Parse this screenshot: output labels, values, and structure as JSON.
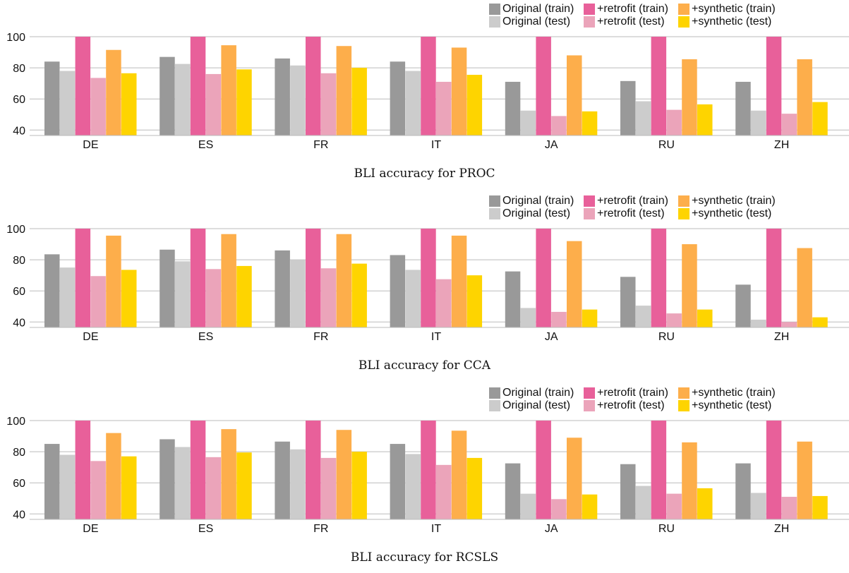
{
  "colors": {
    "original_train": "#999999",
    "original_test": "#cccccc",
    "retrofit_train": "#e8609a",
    "retrofit_test": "#eba4ba",
    "synthetic_train": "#fdae4b",
    "synthetic_test": "#fed400",
    "grid": "#bbbbbb"
  },
  "chart_data": [
    {
      "type": "bar",
      "caption": "BLI accuracy for PROC",
      "categories": [
        "DE",
        "ES",
        "FR",
        "IT",
        "JA",
        "RU",
        "ZH"
      ],
      "ylim": [
        36.5,
        100
      ],
      "yticks": [
        40,
        60,
        80,
        100
      ],
      "grid": true,
      "legend_placement": "top-right",
      "series": [
        {
          "name": "Original (train)",
          "color": "#999999",
          "values": [
            84,
            87,
            86,
            84,
            71,
            71.5,
            71
          ]
        },
        {
          "name": "Original (test)",
          "color": "#cccccc",
          "values": [
            78,
            82.5,
            81.5,
            78,
            52.5,
            58.5,
            52.5
          ]
        },
        {
          "name": "+retrofit (train)",
          "color": "#e8609a",
          "values": [
            100,
            100,
            100,
            100,
            100,
            100,
            100
          ]
        },
        {
          "name": "+retrofit (test)",
          "color": "#eba4ba",
          "values": [
            73.5,
            76,
            76.5,
            71,
            49,
            53,
            50.5
          ]
        },
        {
          "name": "+synthetic (train)",
          "color": "#fdae4b",
          "values": [
            91.5,
            94.5,
            94,
            93,
            88,
            85.5,
            85.5
          ]
        },
        {
          "name": "+synthetic (test)",
          "color": "#fed400",
          "values": [
            76.5,
            79,
            80,
            75.5,
            52,
            56.5,
            58
          ]
        }
      ]
    },
    {
      "type": "bar",
      "caption": "BLI accuracy for CCA",
      "categories": [
        "DE",
        "ES",
        "FR",
        "IT",
        "JA",
        "RU",
        "ZH"
      ],
      "ylim": [
        36.5,
        100
      ],
      "yticks": [
        40,
        60,
        80,
        100
      ],
      "grid": true,
      "legend_placement": "top-right",
      "series": [
        {
          "name": "Original (train)",
          "color": "#999999",
          "values": [
            83.5,
            86.5,
            86,
            83,
            72.5,
            69,
            64
          ]
        },
        {
          "name": "Original (test)",
          "color": "#cccccc",
          "values": [
            75,
            79,
            80,
            73.5,
            49,
            50.5,
            41.5
          ]
        },
        {
          "name": "+retrofit (train)",
          "color": "#e8609a",
          "values": [
            100,
            100,
            100,
            100,
            100,
            100,
            100
          ]
        },
        {
          "name": "+retrofit (test)",
          "color": "#eba4ba",
          "values": [
            69.5,
            74,
            74.5,
            67.5,
            46.5,
            45.5,
            40
          ]
        },
        {
          "name": "+synthetic (train)",
          "color": "#fdae4b",
          "values": [
            95.5,
            96.5,
            96.5,
            95.5,
            92,
            90,
            87.5
          ]
        },
        {
          "name": "+synthetic (test)",
          "color": "#fed400",
          "values": [
            73.5,
            76,
            77.5,
            70,
            48,
            48,
            43
          ]
        }
      ]
    },
    {
      "type": "bar",
      "caption": "BLI accuracy for RCSLS",
      "categories": [
        "DE",
        "ES",
        "FR",
        "IT",
        "JA",
        "RU",
        "ZH"
      ],
      "ylim": [
        36.5,
        100
      ],
      "yticks": [
        40,
        60,
        80,
        100
      ],
      "grid": true,
      "legend_placement": "top-right",
      "series": [
        {
          "name": "Original (train)",
          "color": "#999999",
          "values": [
            85,
            88,
            86.5,
            85,
            72.5,
            72,
            72.5
          ]
        },
        {
          "name": "Original (test)",
          "color": "#cccccc",
          "values": [
            78,
            83,
            81.5,
            78.5,
            53,
            58,
            53.5
          ]
        },
        {
          "name": "+retrofit (train)",
          "color": "#e8609a",
          "values": [
            100,
            100,
            100,
            100,
            100,
            100,
            100
          ]
        },
        {
          "name": "+retrofit (test)",
          "color": "#eba4ba",
          "values": [
            74,
            76.5,
            76,
            71.5,
            49.5,
            53,
            51
          ]
        },
        {
          "name": "+synthetic (train)",
          "color": "#fdae4b",
          "values": [
            92,
            94.5,
            94,
            93.5,
            89,
            86,
            86.5
          ]
        },
        {
          "name": "+synthetic (test)",
          "color": "#fed400",
          "values": [
            77,
            79.5,
            80,
            76,
            52.5,
            56.5,
            51.5
          ]
        }
      ]
    }
  ]
}
